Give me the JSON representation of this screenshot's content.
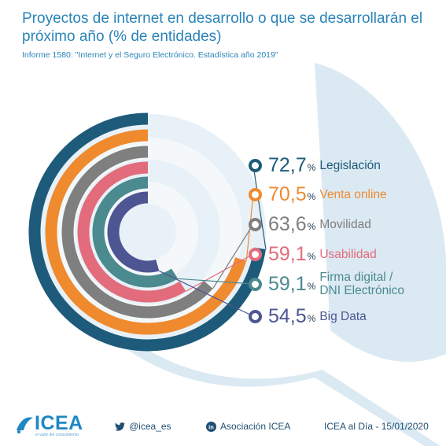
{
  "title": "Proyectos de internet en desarrollo o que se desarrollarán el próximo año (% de entidades)",
  "subtitle": "Informe 1580: \"Internet y el Seguro Electrónico. Estadística año 2019\"",
  "chart_data": {
    "type": "radial-bar",
    "max": 100,
    "unit": "%",
    "items": [
      {
        "label": "Legislación",
        "value": 72.7,
        "display": "72,7",
        "color": "#1e5b7a"
      },
      {
        "label": "Venta online",
        "value": 70.5,
        "display": "70,5",
        "color": "#ef8a2f"
      },
      {
        "label": "Movilidad",
        "value": 63.6,
        "display": "63,6",
        "color": "#7f7f7f"
      },
      {
        "label": "Usabilidad",
        "value": 59.1,
        "display": "59,1",
        "color": "#e36c7c"
      },
      {
        "label": "Firma digital / DNI Electrónico",
        "value": 59.1,
        "display": "59,1",
        "color": "#4b8a8f"
      },
      {
        "label": "Big Data",
        "value": 54.5,
        "display": "54,5",
        "color": "#4d5592"
      }
    ]
  },
  "footer": {
    "brand": "ICEA",
    "brand_tagline": "el valor del conocimiento",
    "twitter": "@icea_es",
    "linkedin": "Asociación ICEA",
    "date": "ICEA al Día - 15/01/2020"
  }
}
